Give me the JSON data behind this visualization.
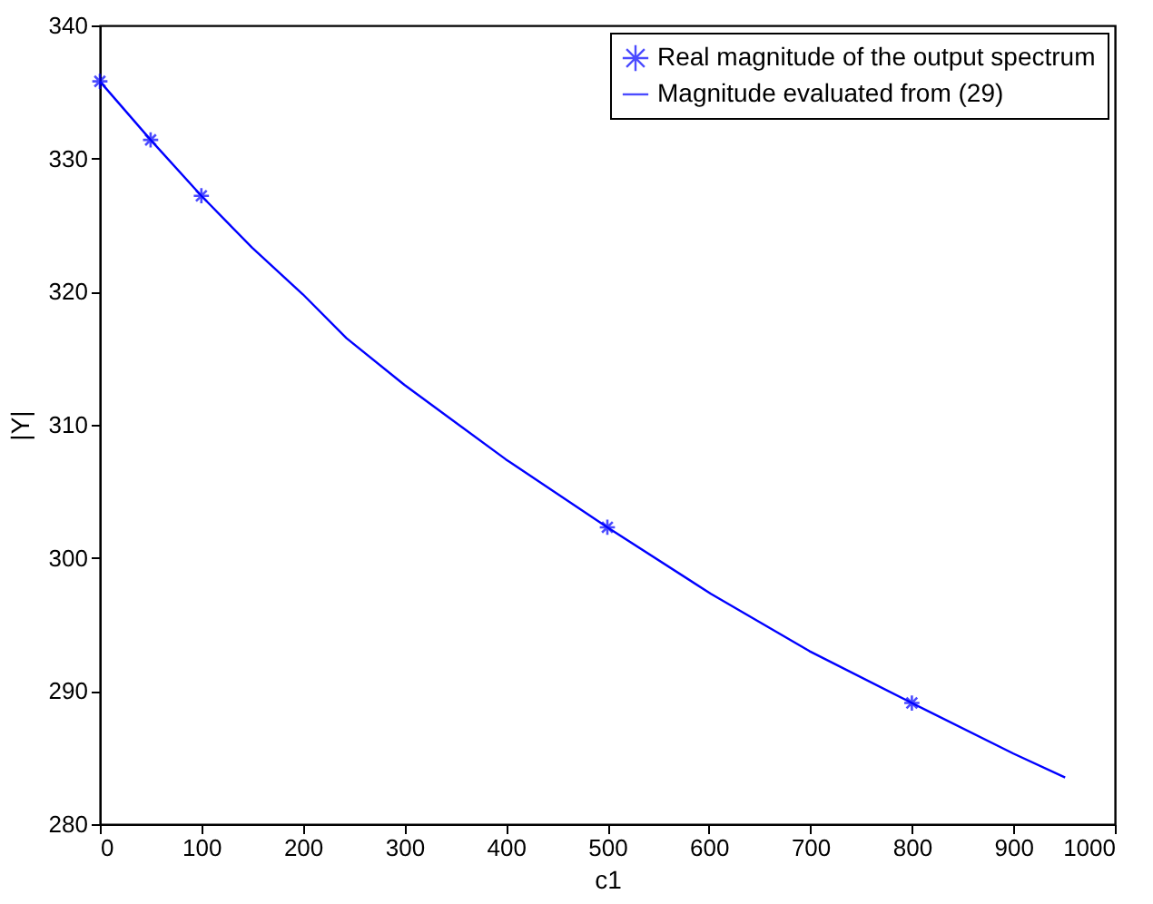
{
  "chart_data": {
    "type": "line",
    "xlabel": "c1",
    "ylabel": "|Y|",
    "xlim": [
      0,
      1000
    ],
    "xticks": [
      0,
      100,
      200,
      300,
      400,
      500,
      600,
      700,
      800,
      900,
      1000
    ],
    "ylim": [
      280,
      340
    ],
    "yticks": [
      280,
      290,
      300,
      310,
      320,
      330,
      340
    ],
    "grid": false,
    "legend": "top right",
    "series": [
      {
        "name": "Real magnitude of the output spectrum",
        "type": "scatter",
        "marker": "cross",
        "color": "#0000ff",
        "x": [
          0,
          50,
          100,
          500,
          800
        ],
        "values": [
          335.8,
          331.4,
          327.2,
          302.3,
          289.1
        ]
      },
      {
        "name": "Magnitude evaluated from (29)",
        "type": "line",
        "marker": "none",
        "color": "#0000ff",
        "x": [
          0,
          50,
          100,
          150,
          200,
          243,
          300,
          400,
          500,
          602,
          699,
          800,
          900,
          951
        ],
        "values": [
          335.8,
          331.4,
          327.2,
          323.3,
          319.8,
          316.5,
          313.0,
          307.4,
          302.3,
          297.3,
          293.0,
          289.1,
          285.3,
          283.5
        ]
      }
    ]
  }
}
